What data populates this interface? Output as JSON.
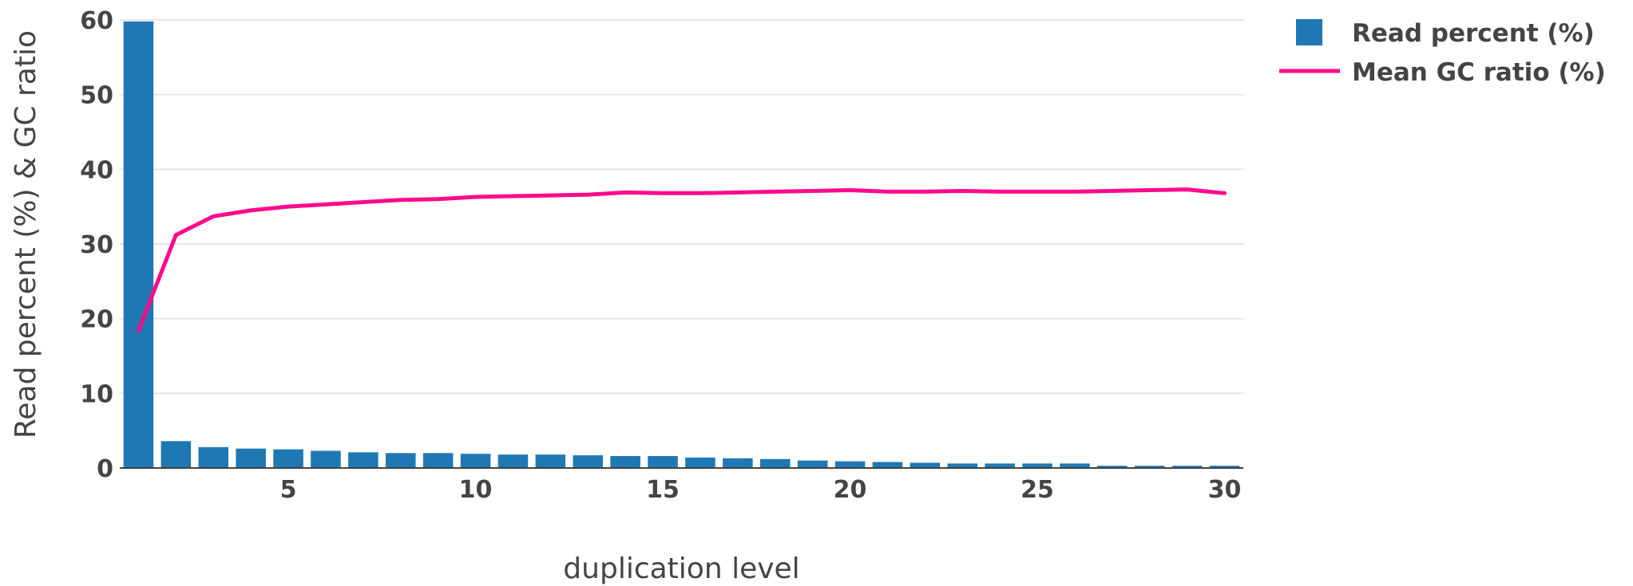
{
  "chart_data": {
    "type": "bar",
    "xlabel": "duplication level",
    "ylabel": "Read percent (%) & GC ratio",
    "xlim": [
      0.5,
      30.5
    ],
    "ylim": [
      0,
      60
    ],
    "x_ticks": [
      5,
      10,
      15,
      20,
      25,
      30
    ],
    "y_ticks": [
      0,
      10,
      20,
      30,
      40,
      50,
      60
    ],
    "grid": true,
    "legend_position": "top-right",
    "x": [
      1,
      2,
      3,
      4,
      5,
      6,
      7,
      8,
      9,
      10,
      11,
      12,
      13,
      14,
      15,
      16,
      17,
      18,
      19,
      20,
      21,
      22,
      23,
      24,
      25,
      26,
      27,
      28,
      29,
      30
    ],
    "series": [
      {
        "name": "Read percent (%)",
        "type": "bar",
        "color": "#1f77b4",
        "values": [
          59.8,
          3.6,
          2.8,
          2.6,
          2.5,
          2.3,
          2.1,
          2.0,
          2.0,
          1.9,
          1.8,
          1.8,
          1.7,
          1.6,
          1.6,
          1.4,
          1.3,
          1.2,
          1.0,
          0.9,
          0.8,
          0.7,
          0.6,
          0.6,
          0.6,
          0.6,
          0.3,
          0.3,
          0.3,
          0.3
        ]
      },
      {
        "name": "Mean GC ratio (%)",
        "type": "line",
        "color": "#ff0a8c",
        "values": [
          18.4,
          31.2,
          33.7,
          34.5,
          35.0,
          35.3,
          35.6,
          35.9,
          36.0,
          36.3,
          36.4,
          36.5,
          36.6,
          36.9,
          36.8,
          36.8,
          36.9,
          37.0,
          37.1,
          37.2,
          37.0,
          37.0,
          37.1,
          37.0,
          37.0,
          37.0,
          37.1,
          37.2,
          37.3,
          36.8
        ]
      }
    ]
  }
}
